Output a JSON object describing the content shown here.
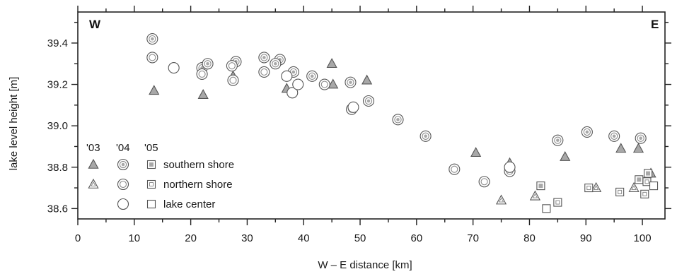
{
  "chart_data": {
    "type": "scatter",
    "xlabel": "W – E distance [km]",
    "ylabel": "lake level height [m]",
    "xlim": [
      0,
      104
    ],
    "ylim": [
      38.55,
      39.55
    ],
    "x_ticks": [
      "0",
      "10",
      "20",
      "30",
      "40",
      "50",
      "60",
      "70",
      "80",
      "90",
      "100"
    ],
    "y_ticks": [
      "38.6",
      "38.8",
      "39.0",
      "39.2",
      "39.4"
    ],
    "corner_left": "W",
    "corner_right": "E",
    "grid": false,
    "legend": {
      "years": [
        "'03",
        "'04",
        "'05"
      ],
      "rows": [
        "southern shore",
        "northern shore",
        "lake center"
      ]
    },
    "series": [
      {
        "year": "'03",
        "location": "southern shore",
        "marker": "triangle-filled",
        "points": [
          [
            13.5,
            39.17
          ],
          [
            22.2,
            39.15
          ],
          [
            27.5,
            39.24
          ],
          [
            37.0,
            39.18
          ],
          [
            45.0,
            39.3
          ],
          [
            45.2,
            39.2
          ],
          [
            51.2,
            39.22
          ],
          [
            70.5,
            38.87
          ],
          [
            76.5,
            38.82
          ],
          [
            86.3,
            38.85
          ],
          [
            96.2,
            38.89
          ],
          [
            99.3,
            38.89
          ],
          [
            101.5,
            38.77
          ]
        ]
      },
      {
        "year": "'03",
        "location": "northern shore",
        "marker": "triangle-open",
        "points": [
          [
            75.0,
            38.64
          ],
          [
            81.0,
            38.66
          ],
          [
            91.8,
            38.7
          ],
          [
            98.5,
            38.7
          ]
        ]
      },
      {
        "year": "'04",
        "location": "southern shore",
        "marker": "circle-double",
        "points": [
          [
            13.2,
            39.42
          ],
          [
            22.0,
            39.28
          ],
          [
            23.0,
            39.3
          ],
          [
            28.0,
            39.31
          ],
          [
            33.0,
            39.33
          ],
          [
            35.8,
            39.32
          ],
          [
            35.0,
            39.3
          ],
          [
            38.2,
            39.26
          ],
          [
            41.5,
            39.24
          ],
          [
            48.3,
            39.21
          ],
          [
            51.5,
            39.12
          ],
          [
            56.7,
            39.03
          ],
          [
            61.6,
            38.95
          ],
          [
            85.0,
            38.93
          ],
          [
            90.2,
            38.97
          ],
          [
            95.0,
            38.95
          ],
          [
            99.7,
            38.94
          ]
        ]
      },
      {
        "year": "'04",
        "location": "northern shore",
        "marker": "circle-ring",
        "points": [
          [
            13.2,
            39.33
          ],
          [
            22.0,
            39.25
          ],
          [
            27.5,
            39.22
          ],
          [
            27.3,
            39.29
          ],
          [
            33.0,
            39.26
          ],
          [
            43.7,
            39.2
          ],
          [
            48.5,
            39.08
          ],
          [
            66.7,
            38.79
          ],
          [
            72.0,
            38.73
          ],
          [
            76.5,
            38.78
          ]
        ]
      },
      {
        "year": "'04",
        "location": "lake center",
        "marker": "circle-open",
        "points": [
          [
            17.0,
            39.28
          ],
          [
            37.0,
            39.24
          ],
          [
            38.0,
            39.16
          ],
          [
            39.0,
            39.2
          ],
          [
            48.8,
            39.09
          ],
          [
            76.5,
            38.8
          ]
        ]
      },
      {
        "year": "'05",
        "location": "southern shore",
        "marker": "square-filled",
        "points": [
          [
            82.0,
            38.71
          ],
          [
            99.4,
            38.74
          ],
          [
            101.0,
            38.77
          ]
        ]
      },
      {
        "year": "'05",
        "location": "northern shore",
        "marker": "square-dotted",
        "points": [
          [
            85.0,
            38.63
          ],
          [
            90.5,
            38.7
          ],
          [
            96.0,
            38.68
          ],
          [
            100.4,
            38.67
          ],
          [
            100.8,
            38.73
          ]
        ]
      },
      {
        "year": "'05",
        "location": "lake center",
        "marker": "square-open",
        "points": [
          [
            83.0,
            38.6
          ],
          [
            102.0,
            38.71
          ]
        ]
      }
    ]
  }
}
